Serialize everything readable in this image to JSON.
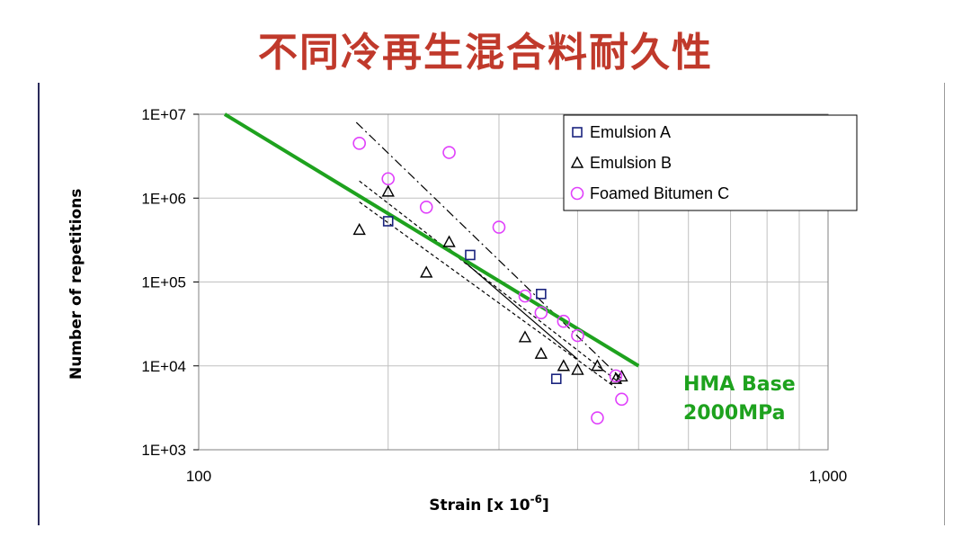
{
  "title": "不同冷再生混合料耐久性",
  "chart_data": {
    "type": "scatter",
    "xlabel": "Strain [x 10",
    "xlabel_sup": "-6",
    "xlabel_tail": "]",
    "ylabel": "Number of repetitions",
    "x_scale": "log",
    "y_scale": "log",
    "xlim": [
      100,
      1000
    ],
    "ylim": [
      1000,
      10000000
    ],
    "x_ticks": [
      {
        "value": 100,
        "label": "100"
      },
      {
        "value": 1000,
        "label": "1,000"
      }
    ],
    "y_ticks": [
      {
        "value": 10000000,
        "label": "1E+07"
      },
      {
        "value": 1000000,
        "label": "1E+06"
      },
      {
        "value": 100000,
        "label": "1E+05"
      },
      {
        "value": 10000,
        "label": "1E+04"
      },
      {
        "value": 1000,
        "label": "1E+03"
      }
    ],
    "grid": true,
    "legend_position": "top-right",
    "series": [
      {
        "name": "Emulsion A",
        "marker": "square",
        "color": "#1a237e",
        "points": [
          [
            200,
            530000
          ],
          [
            270,
            210000
          ],
          [
            350,
            72000
          ],
          [
            370,
            7000
          ]
        ]
      },
      {
        "name": "Emulsion B",
        "marker": "triangle",
        "color": "#000000",
        "points": [
          [
            180,
            420000
          ],
          [
            200,
            1200000
          ],
          [
            230,
            130000
          ],
          [
            250,
            300000
          ],
          [
            330,
            22000
          ],
          [
            350,
            14000
          ],
          [
            380,
            10000
          ],
          [
            400,
            9000
          ],
          [
            430,
            10000
          ],
          [
            460,
            7000
          ],
          [
            470,
            7500
          ]
        ]
      },
      {
        "name": "Foamed Bitumen C",
        "marker": "circle",
        "color": "#e040fb",
        "points": [
          [
            180,
            4500000
          ],
          [
            200,
            1700000
          ],
          [
            230,
            780000
          ],
          [
            250,
            3500000
          ],
          [
            300,
            450000
          ],
          [
            330,
            68000
          ],
          [
            350,
            43000
          ],
          [
            380,
            34000
          ],
          [
            400,
            23000
          ],
          [
            430,
            2400
          ],
          [
            460,
            7600
          ],
          [
            470,
            4000
          ]
        ]
      }
    ],
    "trend_lines": [
      {
        "style": "dashdot",
        "from": [
          178,
          8000000
        ],
        "to": [
          470,
          7000
        ]
      },
      {
        "style": "dashed",
        "from": [
          180,
          1600000
        ],
        "to": [
          470,
          6000
        ]
      },
      {
        "style": "dashed",
        "from": [
          180,
          900000
        ],
        "to": [
          460,
          5500
        ]
      },
      {
        "style": "solid-thin",
        "from": [
          250,
          250000
        ],
        "to": [
          400,
          12000
        ]
      }
    ],
    "reference_line": {
      "name": "HMA Base",
      "label_line1": "HMA Base",
      "label_line2": "2000MPa",
      "color": "#1ea21e",
      "from": [
        110,
        10000000
      ],
      "to": [
        500,
        10000
      ]
    }
  }
}
